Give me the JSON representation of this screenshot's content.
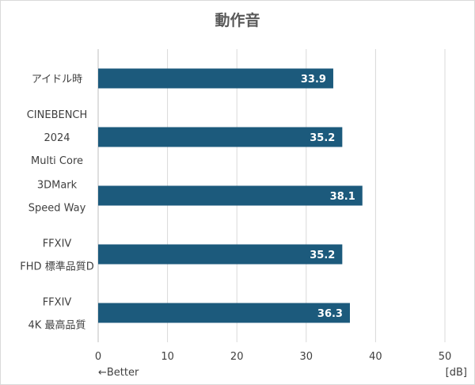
{
  "chart_data": {
    "type": "bar",
    "orientation": "horizontal",
    "title": "動作音",
    "categories": [
      [
        "アイドル時"
      ],
      [
        "CINEBENCH",
        "2024",
        "Multi Core"
      ],
      [
        "3DMark",
        "Speed Way"
      ],
      [
        "FFXIV",
        "FHD 標準品質D"
      ],
      [
        "FFXIV",
        "4K 最高品質"
      ]
    ],
    "values": [
      33.9,
      35.2,
      38.1,
      35.2,
      36.3
    ],
    "value_labels": [
      "33.9",
      "35.2",
      "38.1",
      "35.2",
      "36.3"
    ],
    "xlim": [
      0,
      50
    ],
    "xticks": [
      0,
      10,
      20,
      30,
      40,
      50
    ],
    "unit_label": "[dB]",
    "direction_note": "←Better",
    "grid": "vertical",
    "legend": "none"
  },
  "colors": {
    "bar": "#1c5a7c",
    "grid": "#d9d9d9",
    "text": "#404040",
    "title": "#595959"
  }
}
